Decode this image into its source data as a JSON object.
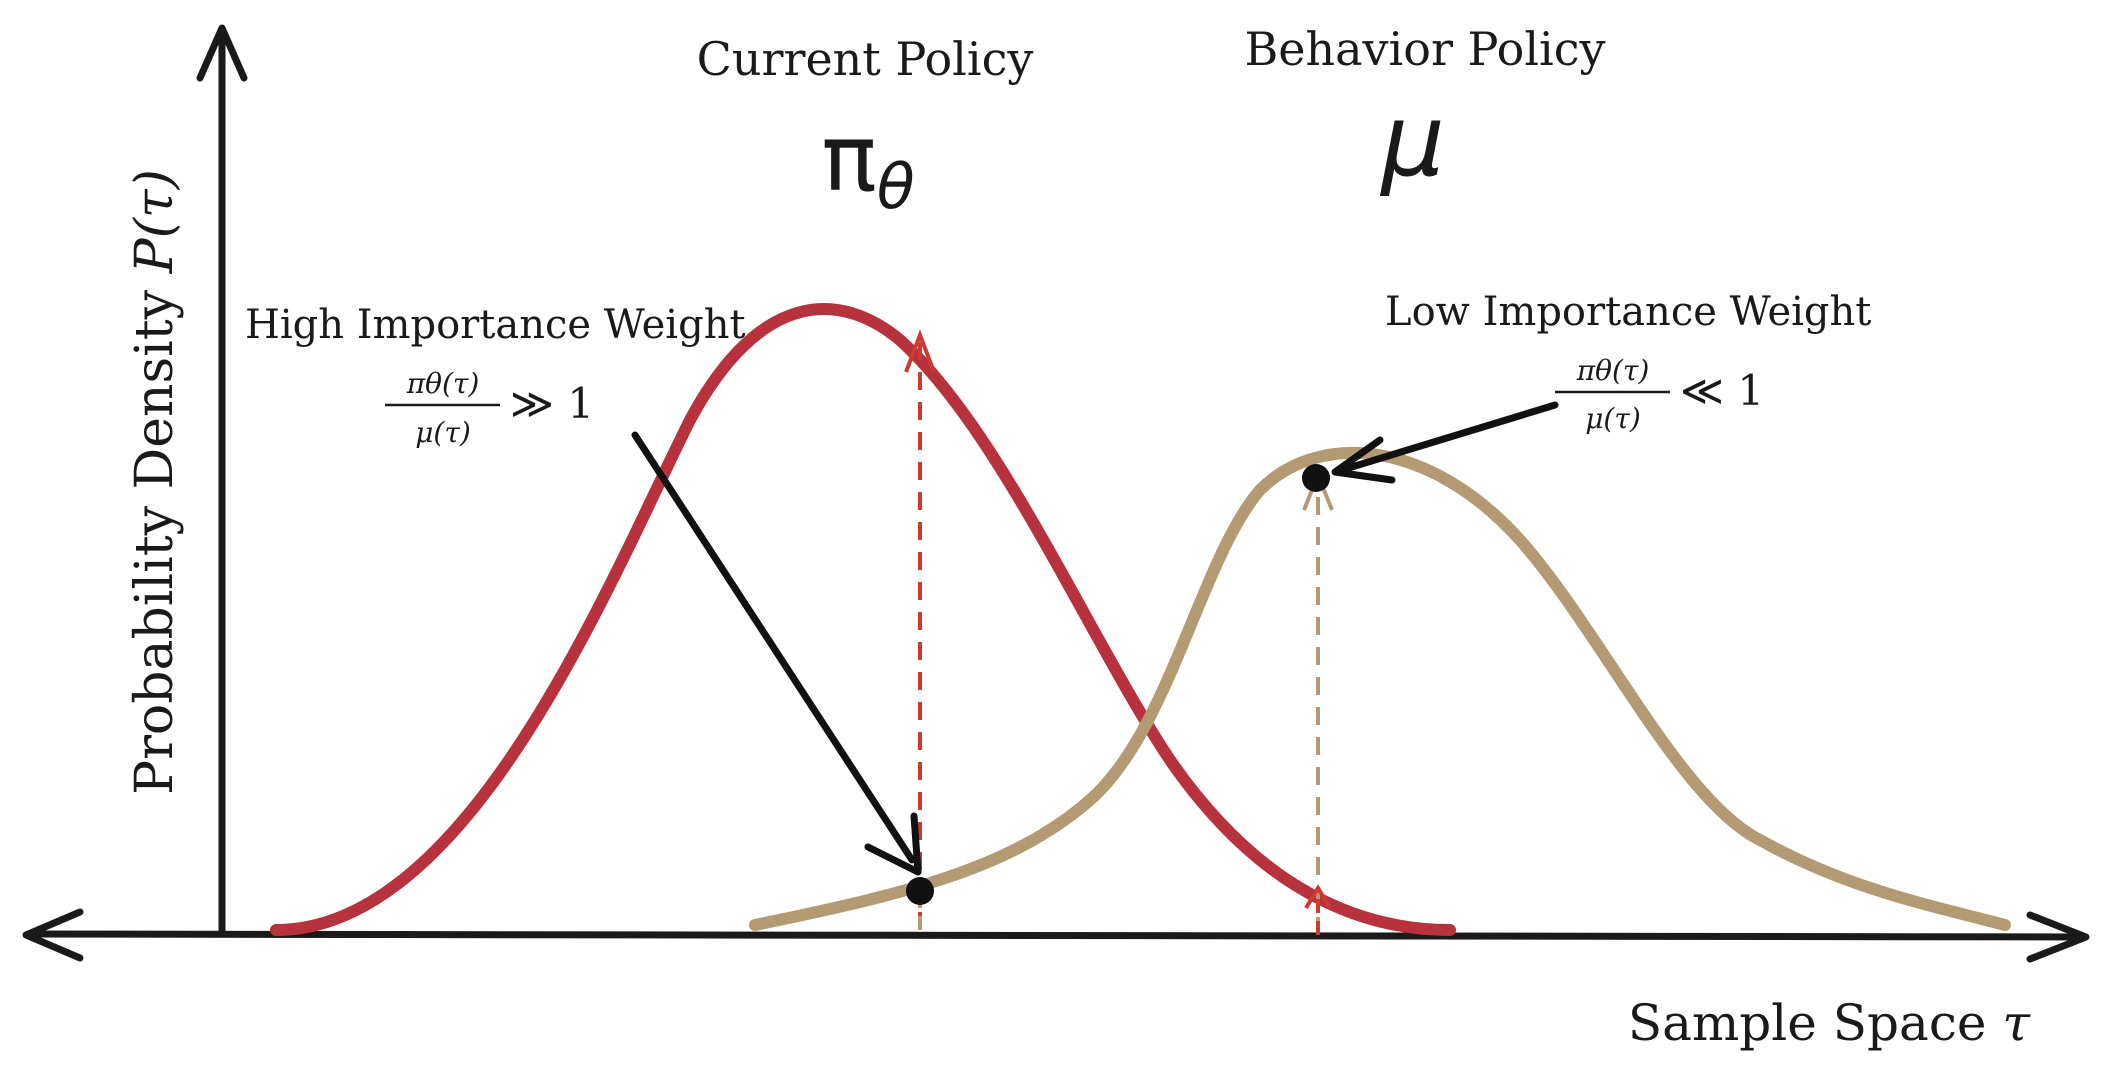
{
  "y_axis": {
    "label_text": "Probability Density ",
    "label_math": "P(τ)"
  },
  "x_axis": {
    "label_text": "Sample Space ",
    "label_math": "τ"
  },
  "current_policy": {
    "title": "Current Policy",
    "symbol": "π",
    "symbol_subscript": "θ",
    "color": "#b8323d"
  },
  "behavior_policy": {
    "title": "Behavior Policy",
    "symbol": "μ",
    "color": "#b39a72"
  },
  "high_weight": {
    "title": "High Importance Weight",
    "numerator": "πθ(τ)",
    "denominator": "μ(τ)",
    "relation": "≫ 1"
  },
  "low_weight": {
    "title": "Low Importance Weight",
    "numerator": "πθ(τ)",
    "denominator": "μ(τ)",
    "relation": "≪ 1"
  }
}
